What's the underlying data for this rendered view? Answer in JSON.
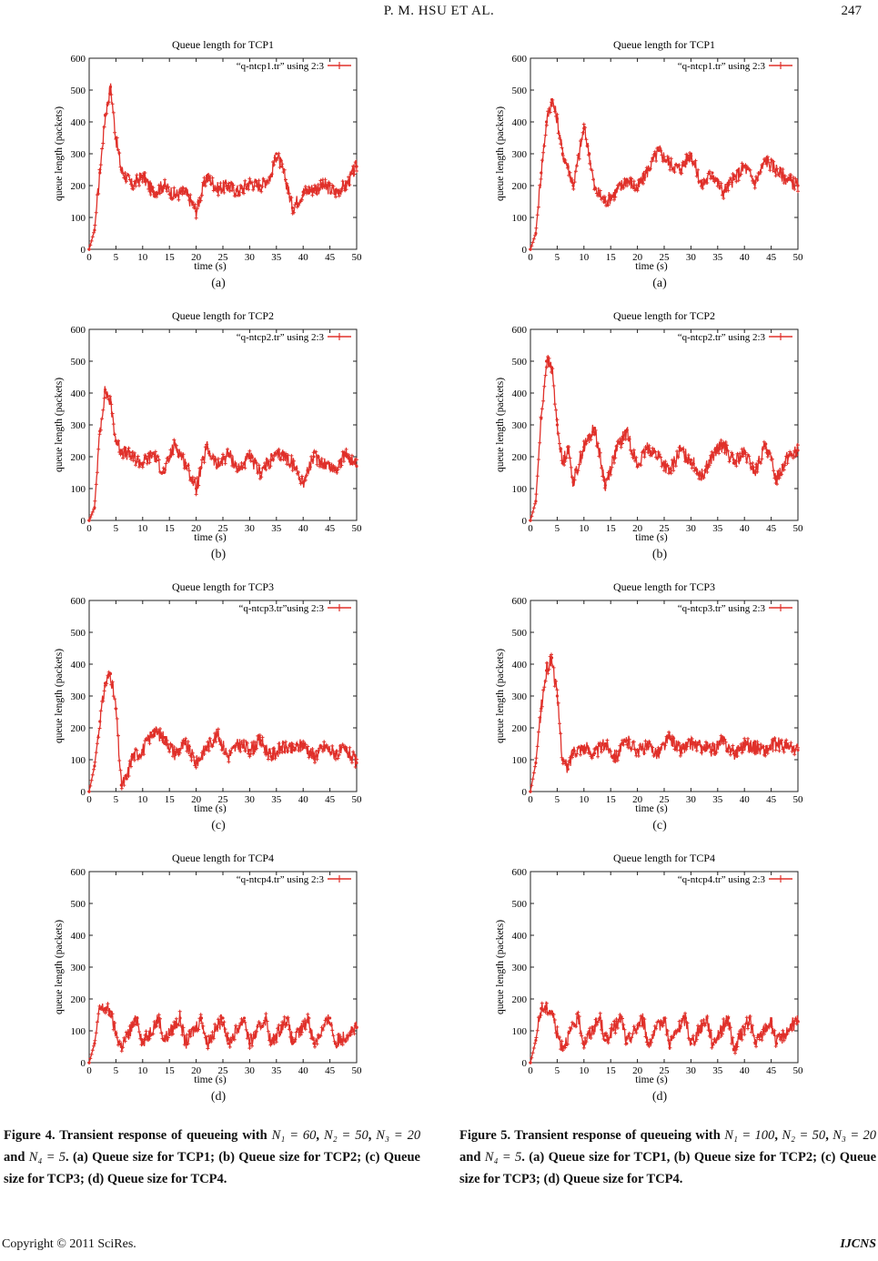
{
  "header": {
    "running_title": "P. M. HSU   ET   AL.",
    "page_number": "247"
  },
  "figures": [
    {
      "id": "fig4",
      "panels": [
        {
          "label": "(a)",
          "chart_data": {
            "type": "line",
            "title": "Queue length for TCP1",
            "legend": "“q-ntcp1.tr” using 2:3",
            "xlabel": "time (s)",
            "ylabel": "queue length (packets)",
            "xlim": [
              0,
              50
            ],
            "ylim": [
              0,
              600
            ],
            "xticks": [
              0,
              5,
              10,
              15,
              20,
              25,
              30,
              35,
              40,
              45,
              50
            ],
            "yticks": [
              0,
              100,
              200,
              300,
              400,
              500,
              600
            ],
            "color": "#e0302a",
            "x": [
              0,
              1,
              2,
              3,
              4,
              5,
              6,
              8,
              10,
              12,
              14,
              16,
              18,
              20,
              22,
              24,
              26,
              28,
              30,
              32,
              34,
              35,
              36,
              37,
              38,
              40,
              42,
              44,
              46,
              48,
              50
            ],
            "y": [
              0,
              60,
              240,
              420,
              510,
              350,
              250,
              200,
              230,
              180,
              200,
              170,
              180,
              120,
              230,
              190,
              200,
              180,
              210,
              200,
              230,
              300,
              260,
              200,
              130,
              180,
              190,
              200,
              180,
              200,
              260
            ]
          }
        },
        {
          "label": "(b)",
          "chart_data": {
            "type": "line",
            "title": "Queue length for TCP2",
            "legend": "“q-ntcp2.tr” using 2:3",
            "xlabel": "time (s)",
            "ylabel": "queue length (packets)",
            "xlim": [
              0,
              50
            ],
            "ylim": [
              0,
              600
            ],
            "xticks": [
              0,
              5,
              10,
              15,
              20,
              25,
              30,
              35,
              40,
              45,
              50
            ],
            "yticks": [
              0,
              100,
              200,
              300,
              400,
              500,
              600
            ],
            "color": "#e0302a",
            "x": [
              0,
              1,
              2,
              3,
              4,
              5,
              6,
              8,
              10,
              12,
              14,
              16,
              18,
              20,
              22,
              24,
              26,
              28,
              30,
              32,
              34,
              36,
              38,
              40,
              42,
              44,
              46,
              48,
              50
            ],
            "y": [
              0,
              40,
              280,
              410,
              370,
              250,
              220,
              200,
              180,
              210,
              150,
              240,
              180,
              100,
              230,
              170,
              210,
              160,
              200,
              150,
              190,
              210,
              180,
              120,
              200,
              180,
              160,
              210,
              170
            ]
          }
        },
        {
          "label": "(c)",
          "chart_data": {
            "type": "line",
            "title": "Queue length for TCP3",
            "legend": "“q-ntcp3.tr”using 2:3",
            "xlabel": "time (s)",
            "ylabel": "queue length (packets)",
            "xlim": [
              0,
              50
            ],
            "ylim": [
              0,
              600
            ],
            "xticks": [
              0,
              5,
              10,
              15,
              20,
              25,
              30,
              35,
              40,
              45,
              50
            ],
            "yticks": [
              0,
              100,
              200,
              300,
              400,
              500,
              600
            ],
            "color": "#e0302a",
            "x": [
              0,
              1,
              2,
              3,
              4,
              5,
              6,
              7,
              8,
              10,
              12,
              14,
              16,
              18,
              20,
              22,
              24,
              26,
              28,
              30,
              32,
              34,
              36,
              38,
              40,
              42,
              44,
              46,
              48,
              50
            ],
            "y": [
              0,
              80,
              220,
              340,
              370,
              260,
              20,
              40,
              110,
              130,
              190,
              170,
              120,
              150,
              90,
              140,
              180,
              110,
              150,
              130,
              160,
              110,
              140,
              130,
              150,
              110,
              140,
              120,
              130,
              90
            ]
          }
        },
        {
          "label": "(d)",
          "chart_data": {
            "type": "line",
            "title": "Queue length for TCP4",
            "legend": "“q-ntcp4.tr” using 2:3",
            "xlabel": "time (s)",
            "ylabel": "queue length (packets)",
            "xlim": [
              0,
              50
            ],
            "ylim": [
              0,
              600
            ],
            "xticks": [
              0,
              5,
              10,
              15,
              20,
              25,
              30,
              35,
              40,
              45,
              50
            ],
            "yticks": [
              0,
              100,
              200,
              300,
              400,
              500,
              600
            ],
            "color": "#e0302a",
            "x": [
              0,
              1,
              2,
              3,
              4,
              5,
              6,
              9,
              10,
              13,
              14,
              17,
              18,
              21,
              22,
              25,
              26,
              29,
              30,
              33,
              34,
              37,
              38,
              41,
              42,
              45,
              46,
              49,
              50
            ],
            "y": [
              0,
              60,
              170,
              170,
              160,
              90,
              50,
              140,
              60,
              140,
              70,
              140,
              60,
              140,
              60,
              140,
              60,
              140,
              60,
              140,
              60,
              140,
              60,
              140,
              60,
              140,
              60,
              100,
              110
            ]
          }
        }
      ],
      "caption": {
        "prefix": "Figure 4. Transient response of queueing with",
        "n1": "N₁ = 60",
        "n2": "N₂ = 50",
        "n3": "N₃ = 20",
        "and": "and",
        "n4": "N₄ = 5",
        "suffix": ". (a) Queue size for TCP1; (b) Queue size for TCP2; (c) Queue size for TCP3; (d) Queue size for TCP4."
      }
    },
    {
      "id": "fig5",
      "panels": [
        {
          "label": "(a)",
          "chart_data": {
            "type": "line",
            "title": "Queue length for TCP1",
            "legend": "“q-ntcp1.tr” using 2:3",
            "xlabel": "time (s)",
            "ylabel": "queue length (packets)",
            "xlim": [
              0,
              50
            ],
            "ylim": [
              0,
              600
            ],
            "xticks": [
              0,
              5,
              10,
              15,
              20,
              25,
              30,
              35,
              40,
              45,
              50
            ],
            "yticks": [
              0,
              100,
              200,
              300,
              400,
              500,
              600
            ],
            "color": "#e0302a",
            "x": [
              0,
              1,
              2,
              3,
              4,
              5,
              6,
              7,
              8,
              9,
              10,
              11,
              12,
              14,
              16,
              18,
              20,
              22,
              24,
              26,
              28,
              30,
              32,
              34,
              36,
              38,
              40,
              42,
              44,
              46,
              48,
              50
            ],
            "y": [
              0,
              50,
              240,
              400,
              470,
              410,
              300,
              260,
              200,
              290,
              380,
              300,
              190,
              150,
              180,
              220,
              190,
              250,
              310,
              270,
              250,
              300,
              200,
              240,
              180,
              220,
              260,
              210,
              280,
              250,
              220,
              200
            ]
          }
        },
        {
          "label": "(b)",
          "chart_data": {
            "type": "line",
            "title": "Queue length for TCP2",
            "legend": "“q-ntcp2.tr” using 2:3",
            "xlabel": "time (s)",
            "ylabel": "queue length (packets)",
            "xlim": [
              0,
              50
            ],
            "ylim": [
              0,
              600
            ],
            "xticks": [
              0,
              5,
              10,
              15,
              20,
              25,
              30,
              35,
              40,
              45,
              50
            ],
            "yticks": [
              0,
              100,
              200,
              300,
              400,
              500,
              600
            ],
            "color": "#e0302a",
            "x": [
              0,
              1,
              2,
              3,
              4,
              5,
              6,
              7,
              8,
              10,
              12,
              14,
              16,
              18,
              20,
              22,
              24,
              26,
              28,
              30,
              32,
              34,
              36,
              38,
              40,
              42,
              44,
              46,
              48,
              50
            ],
            "y": [
              0,
              60,
              320,
              500,
              480,
              300,
              180,
              230,
              120,
              230,
              290,
              110,
              220,
              280,
              170,
              230,
              200,
              150,
              220,
              190,
              140,
              200,
              240,
              180,
              210,
              150,
              240,
              130,
              200,
              220
            ]
          }
        },
        {
          "label": "(c)",
          "chart_data": {
            "type": "line",
            "title": "Queue length for TCP3",
            "legend": "“q-ntcp3.tr” using 2:3",
            "xlabel": "time (s)",
            "ylabel": "queue length (packets)",
            "xlim": [
              0,
              50
            ],
            "ylim": [
              0,
              600
            ],
            "xticks": [
              0,
              5,
              10,
              15,
              20,
              25,
              30,
              35,
              40,
              45,
              50
            ],
            "yticks": [
              0,
              100,
              200,
              300,
              400,
              500,
              600
            ],
            "color": "#e0302a",
            "x": [
              0,
              1,
              2,
              3,
              4,
              5,
              6,
              7,
              8,
              10,
              12,
              14,
              16,
              18,
              20,
              22,
              24,
              26,
              28,
              30,
              32,
              34,
              36,
              38,
              40,
              42,
              44,
              46,
              48,
              50
            ],
            "y": [
              0,
              90,
              260,
              380,
              420,
              300,
              100,
              70,
              130,
              140,
              120,
              150,
              110,
              160,
              130,
              140,
              120,
              170,
              130,
              150,
              140,
              130,
              160,
              120,
              150,
              140,
              130,
              150,
              140,
              130
            ]
          }
        },
        {
          "label": "(d)",
          "chart_data": {
            "type": "line",
            "title": "Queue length for TCP4",
            "legend": "“q-ntcp4.tr” using 2:3",
            "xlabel": "time (s)",
            "ylabel": "queue length (packets)",
            "xlim": [
              0,
              50
            ],
            "ylim": [
              0,
              600
            ],
            "xticks": [
              0,
              5,
              10,
              15,
              20,
              25,
              30,
              35,
              40,
              45,
              50
            ],
            "yticks": [
              0,
              100,
              200,
              300,
              400,
              500,
              600
            ],
            "color": "#e0302a",
            "x": [
              0,
              1,
              2,
              3,
              4,
              5,
              6,
              9,
              10,
              13,
              14,
              17,
              18,
              21,
              22,
              25,
              26,
              29,
              30,
              33,
              34,
              37,
              38,
              41,
              42,
              45,
              46,
              49,
              50
            ],
            "y": [
              0,
              70,
              170,
              170,
              160,
              90,
              50,
              140,
              60,
              140,
              70,
              140,
              60,
              140,
              60,
              140,
              60,
              140,
              60,
              140,
              60,
              140,
              40,
              140,
              60,
              130,
              60,
              120,
              130
            ]
          }
        }
      ],
      "caption": {
        "prefix": "Figure 5. Transient response of queueing with",
        "n1": "N₁ = 100",
        "n2": "N₂ = 50",
        "n3": "N₃ = 20",
        "and": "and",
        "n4": "N₄ = 5",
        "suffix": ". (a) Queue size for TCP1, (b) Queue size for TCP2; (c) Queue size for TCP3; (d) Queue size for TCP4."
      }
    }
  ],
  "footer": {
    "copyright": "Copyright © 2011 SciRes.",
    "journal": "IJCNS"
  }
}
